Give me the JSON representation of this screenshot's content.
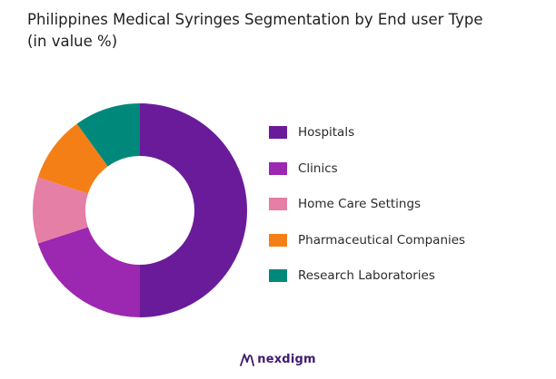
{
  "title_lines": [
    "Philippines Medical Syringes Segmentation by End user Type",
    "(in value %)"
  ],
  "chart_data": {
    "type": "pie",
    "title": "Philippines Medical Syringes Segmentation by End user Type (in value %)",
    "unit": "%",
    "donut": true,
    "legend_position": "right",
    "labels": [
      "Hospitals",
      "Clinics",
      "Home Care Settings",
      "Pharmaceutical Companies",
      "Research Laboratories"
    ],
    "values": [
      50,
      20,
      10,
      10,
      10
    ],
    "colors": [
      "#6a1b9a",
      "#9c27b0",
      "#e57fa5",
      "#f57f17",
      "#00897b"
    ]
  },
  "brand": {
    "name": "nexdigm",
    "logo_icon": "nexdigm-logo-icon"
  }
}
